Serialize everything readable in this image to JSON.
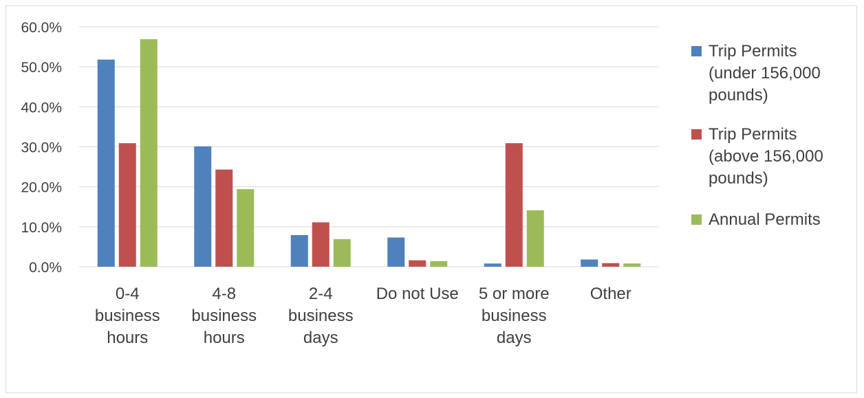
{
  "chart_data": {
    "type": "bar",
    "categories": [
      [
        "0-4",
        "business",
        "hours"
      ],
      [
        "4-8",
        "business",
        "hours"
      ],
      [
        "2-4",
        "business",
        "days"
      ],
      [
        "Do not Use"
      ],
      [
        "5 or more",
        "business",
        "days"
      ],
      [
        "Other"
      ]
    ],
    "series": [
      {
        "name": [
          "Trip Permits",
          "(under 156,000",
          "pounds)"
        ],
        "color": "#4f81bd",
        "values": [
          51.8,
          30.1,
          7.9,
          7.3,
          0.8,
          1.8
        ]
      },
      {
        "name": [
          "Trip Permits",
          "(above 156,000",
          "pounds)"
        ],
        "color": "#c0504d",
        "values": [
          30.9,
          24.3,
          11.1,
          1.6,
          30.9,
          0.9
        ]
      },
      {
        "name": [
          "Annual Permits"
        ],
        "color": "#9bbb59",
        "values": [
          56.9,
          19.4,
          6.9,
          1.4,
          14.1,
          0.8
        ]
      }
    ],
    "y_ticks": [
      "0.0%",
      "10.0%",
      "20.0%",
      "30.0%",
      "40.0%",
      "50.0%",
      "60.0%"
    ],
    "ylim": [
      0,
      60
    ],
    "grid": true,
    "legend": "right"
  }
}
